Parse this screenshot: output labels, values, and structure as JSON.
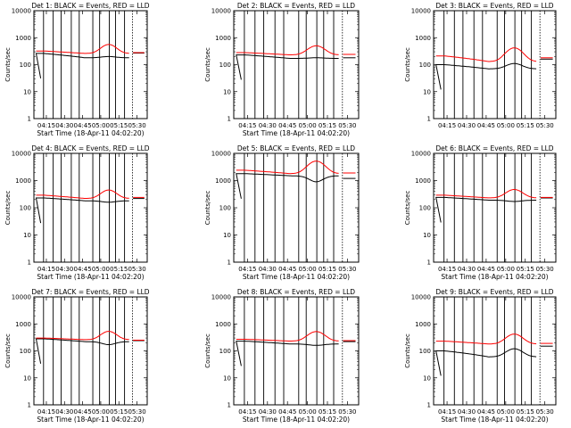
{
  "figure": {
    "colors": {
      "events": "#000000",
      "lld": "#ff0000",
      "axes": "#000000",
      "background": "#ffffff"
    }
  },
  "chart_data": [
    {
      "type": "line",
      "title": "Det 1: BLACK = Events, RED = LLD",
      "xlabel": "Start Time (18-Apr-11 04:02:20)",
      "ylabel": "Counts/sec",
      "x_ticks": [
        "04:15",
        "04:30",
        "04:45",
        "05:00",
        "05:15",
        "05:30"
      ],
      "y_ticks": [
        "1",
        "10",
        "100",
        "1000",
        "10000"
      ],
      "y_scale": "log",
      "ylim": [
        1,
        10000
      ],
      "series": [
        {
          "name": "Events",
          "color": "#000000",
          "level": 180,
          "bump": 200,
          "pre": 260,
          "post": 270
        },
        {
          "name": "LLD",
          "color": "#ff0000",
          "level": 260,
          "bump": 560,
          "pre": 320,
          "post": 280
        }
      ]
    },
    {
      "type": "line",
      "title": "Det 2: BLACK = Events, RED = LLD",
      "xlabel": "Start Time (18-Apr-11 04:02:20)",
      "ylabel": "Counts/sec",
      "x_ticks": [
        "04:15",
        "04:30",
        "04:45",
        "05:00",
        "05:15",
        "05:30"
      ],
      "y_ticks": [
        "1",
        "10",
        "100",
        "1000",
        "10000"
      ],
      "y_scale": "log",
      "ylim": [
        1,
        10000
      ],
      "series": [
        {
          "name": "Events",
          "color": "#000000",
          "level": 170,
          "bump": 180,
          "pre": 230,
          "post": 180
        },
        {
          "name": "LLD",
          "color": "#ff0000",
          "level": 230,
          "bump": 500,
          "pre": 280,
          "post": 240
        }
      ]
    },
    {
      "type": "line",
      "title": "Det 3: BLACK = Events, RED = LLD",
      "xlabel": "",
      "ylabel": "Counts/sec",
      "x_ticks": [
        "04:15",
        "04:30",
        "04:45",
        "05:00",
        "05:15",
        "05:30"
      ],
      "y_ticks": [
        "1",
        "10",
        "100",
        "1000",
        "10000"
      ],
      "y_scale": "log",
      "ylim": [
        1,
        10000
      ],
      "series": [
        {
          "name": "Events",
          "color": "#000000",
          "level": 70,
          "bump": 110,
          "pre": 100,
          "post": 160
        },
        {
          "name": "LLD",
          "color": "#ff0000",
          "level": 130,
          "bump": 420,
          "pre": 210,
          "post": 180
        }
      ]
    },
    {
      "type": "line",
      "title": "Det 4: BLACK = Events, RED = LLD",
      "xlabel": "Start Time (18-Apr-11 04:02:20)",
      "ylabel": "Counts/sec",
      "x_ticks": [
        "04:15",
        "04:30",
        "04:45",
        "05:00",
        "05:15",
        "05:30"
      ],
      "y_ticks": [
        "1",
        "10",
        "100",
        "1000",
        "10000"
      ],
      "y_scale": "log",
      "ylim": [
        1,
        10000
      ],
      "series": [
        {
          "name": "Events",
          "color": "#000000",
          "level": 180,
          "bump": 160,
          "pre": 230,
          "post": 220
        },
        {
          "name": "LLD",
          "color": "#ff0000",
          "level": 220,
          "bump": 450,
          "pre": 290,
          "post": 240
        }
      ]
    },
    {
      "type": "line",
      "title": "Det 5: BLACK = Events, RED = LLD",
      "xlabel": "Start Time (18-Apr-11 04:02:20)",
      "ylabel": "Counts/sec",
      "x_ticks": [
        "04:15",
        "04:30",
        "04:45",
        "05:00",
        "05:15",
        "05:30"
      ],
      "y_ticks": [
        "1",
        "10",
        "100",
        "1000",
        "10000"
      ],
      "y_scale": "log",
      "ylim": [
        1,
        10000
      ],
      "series": [
        {
          "name": "Events",
          "color": "#000000",
          "level": 1500,
          "bump": 900,
          "pre": 1800,
          "post": 1200
        },
        {
          "name": "LLD",
          "color": "#ff0000",
          "level": 1800,
          "bump": 5200,
          "pre": 2400,
          "post": 1900
        }
      ]
    },
    {
      "type": "line",
      "title": "Det 6: BLACK = Events, RED = LLD",
      "xlabel": "Start Time (18-Apr-11 04:02:20)",
      "ylabel": "Counts/sec",
      "x_ticks": [
        "04:15",
        "04:30",
        "04:45",
        "05:00",
        "05:15",
        "05:30"
      ],
      "y_ticks": [
        "1",
        "10",
        "100",
        "1000",
        "10000"
      ],
      "y_scale": "log",
      "ylim": [
        1,
        10000
      ],
      "series": [
        {
          "name": "Events",
          "color": "#000000",
          "level": 190,
          "bump": 170,
          "pre": 240,
          "post": 230
        },
        {
          "name": "LLD",
          "color": "#ff0000",
          "level": 230,
          "bump": 470,
          "pre": 290,
          "post": 240
        }
      ]
    },
    {
      "type": "line",
      "title": "Det 7: BLACK = Events, RED = LLD",
      "xlabel": "Start Time (18-Apr-11 04:02:20)",
      "ylabel": "Counts/sec",
      "x_ticks": [
        "04:15",
        "04:30",
        "04:45",
        "05:00",
        "05:15",
        "05:30"
      ],
      "y_ticks": [
        "1",
        "10",
        "100",
        "1000",
        "10000"
      ],
      "y_scale": "log",
      "ylim": [
        1,
        10000
      ],
      "series": [
        {
          "name": "Events",
          "color": "#000000",
          "level": 220,
          "bump": 170,
          "pre": 280,
          "post": 240
        },
        {
          "name": "LLD",
          "color": "#ff0000",
          "level": 260,
          "bump": 530,
          "pre": 300,
          "post": 250
        }
      ]
    },
    {
      "type": "line",
      "title": "Det 8: BLACK = Events, RED = LLD",
      "xlabel": "Start Time (18-Apr-11 04:02:20)",
      "ylabel": "Counts/sec",
      "x_ticks": [
        "04:15",
        "04:30",
        "04:45",
        "05:00",
        "05:15",
        "05:30"
      ],
      "y_ticks": [
        "1",
        "10",
        "100",
        "1000",
        "10000"
      ],
      "y_scale": "log",
      "ylim": [
        1,
        10000
      ],
      "series": [
        {
          "name": "Events",
          "color": "#000000",
          "level": 180,
          "bump": 160,
          "pre": 230,
          "post": 220
        },
        {
          "name": "LLD",
          "color": "#ff0000",
          "level": 230,
          "bump": 520,
          "pre": 270,
          "post": 240
        }
      ]
    },
    {
      "type": "line",
      "title": "Det 9: BLACK = Events, RED = LLD",
      "xlabel": "Start Time (18-Apr-11 04:02:20)",
      "ylabel": "Counts/sec",
      "x_ticks": [
        "04:15",
        "04:30",
        "04:45",
        "05:00",
        "05:15",
        "05:30"
      ],
      "y_ticks": [
        "1",
        "10",
        "100",
        "1000",
        "10000"
      ],
      "y_scale": "log",
      "ylim": [
        1,
        10000
      ],
      "series": [
        {
          "name": "Events",
          "color": "#000000",
          "level": 60,
          "bump": 120,
          "pre": 100,
          "post": 150
        },
        {
          "name": "LLD",
          "color": "#ff0000",
          "level": 180,
          "bump": 420,
          "pre": 230,
          "post": 190
        }
      ]
    }
  ]
}
